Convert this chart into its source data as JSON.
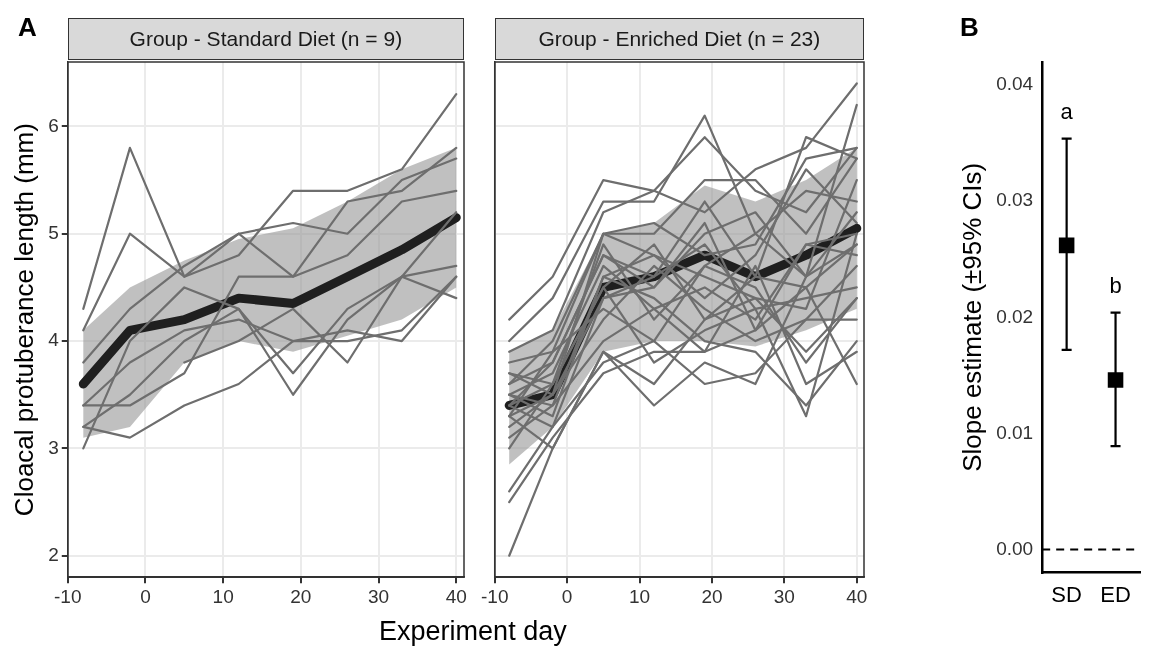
{
  "chart_data": [
    {
      "type": "line",
      "title": "Group - Standard Diet (n = 9)",
      "xlabel": "Experiment day",
      "ylabel": "Cloacal protuberance length (mm)",
      "annotations": [
        "A"
      ],
      "x": [
        -8,
        -2,
        5,
        12,
        19,
        26,
        33,
        40
      ],
      "xlim": [
        -10,
        41
      ],
      "xticks": [
        -10,
        0,
        10,
        20,
        30,
        40
      ],
      "ylim": [
        1.8,
        6.6
      ],
      "yticks": [
        2,
        3,
        4,
        5,
        6
      ],
      "grid": true,
      "series": [
        {
          "color": "#6e6e6e",
          "values": [
            4.3,
            5.8,
            4.6,
            5.0,
            4.6,
            5.3,
            5.4,
            5.8
          ]
        },
        {
          "color": "#6e6e6e",
          "values": [
            4.1,
            5.0,
            4.6,
            4.8,
            5.4,
            5.4,
            5.6,
            6.3
          ]
        },
        {
          "color": "#6e6e6e",
          "values": [
            3.8,
            4.3,
            4.7,
            5.0,
            5.1,
            5.0,
            5.5,
            5.7
          ]
        },
        {
          "color": "#6e6e6e",
          "values": [
            3.4,
            3.4,
            3.7,
            4.6,
            4.6,
            4.8,
            5.3,
            5.4
          ]
        },
        {
          "color": "#6e6e6e",
          "values": [
            3.2,
            3.1,
            3.4,
            3.6,
            4.0,
            4.0,
            4.1,
            4.6
          ]
        },
        {
          "color": "#6e6e6e",
          "values": [
            3.0,
            4.0,
            4.5,
            4.3,
            3.7,
            4.3,
            4.6,
            4.7
          ]
        },
        {
          "color": "#6e6e6e",
          "values": [
            3.2,
            3.5,
            4.0,
            4.3,
            3.5,
            4.2,
            4.6,
            5.2
          ]
        },
        {
          "color": "#6e6e6e",
          "values": [
            null,
            null,
            3.8,
            4.0,
            4.3,
            3.8,
            4.6,
            4.4
          ]
        },
        {
          "color": "#6e6e6e",
          "values": [
            3.4,
            3.8,
            4.1,
            4.2,
            4.0,
            4.1,
            4.0,
            4.6
          ]
        },
        {
          "color": "#1f1f1f",
          "values": [
            3.6,
            4.1,
            4.2,
            4.4,
            4.35,
            4.6,
            4.85,
            5.15
          ],
          "lower": [
            3.1,
            3.2,
            3.8,
            4.0,
            3.9,
            4.05,
            4.2,
            4.5
          ],
          "upper": [
            4.1,
            4.5,
            4.75,
            4.95,
            5.05,
            5.3,
            5.6,
            5.8
          ]
        }
      ]
    },
    {
      "type": "line",
      "title": "Group - Enriched Diet (n = 23)",
      "tick_labels": "x",
      "x": [
        -8,
        -2,
        5,
        12,
        19,
        26,
        33,
        40
      ],
      "xlim": [
        -10,
        41
      ],
      "xticks": [
        -10,
        0,
        10,
        20,
        30,
        40
      ],
      "ylim": [
        1.8,
        6.6
      ],
      "yticks": [
        2,
        3,
        4,
        5,
        6
      ],
      "grid": true,
      "series": [
        {
          "color": "#6e6e6e",
          "values": [
            4.2,
            4.6,
            5.5,
            5.4,
            5.2,
            5.6,
            5.8,
            6.4
          ]
        },
        {
          "color": "#6e6e6e",
          "values": [
            4.0,
            4.4,
            5.3,
            5.3,
            6.1,
            5.0,
            4.6,
            6.2
          ]
        },
        {
          "color": "#6e6e6e",
          "values": [
            3.9,
            4.1,
            5.2,
            5.4,
            5.9,
            5.4,
            5.2,
            5.8
          ]
        },
        {
          "color": "#6e6e6e",
          "values": [
            3.8,
            3.9,
            5.0,
            5.0,
            5.5,
            5.5,
            5.0,
            5.7
          ]
        },
        {
          "color": "#6e6e6e",
          "values": [
            3.7,
            3.5,
            5.0,
            5.1,
            4.8,
            4.9,
            5.7,
            5.8
          ]
        },
        {
          "color": "#6e6e6e",
          "values": [
            3.6,
            3.8,
            4.8,
            4.5,
            5.0,
            5.2,
            4.6,
            5.2
          ]
        },
        {
          "color": "#6e6e6e",
          "values": [
            3.5,
            3.3,
            4.6,
            4.8,
            4.4,
            4.8,
            5.6,
            5.1
          ]
        },
        {
          "color": "#6e6e6e",
          "values": [
            3.5,
            3.7,
            4.7,
            4.3,
            4.5,
            4.2,
            4.9,
            5.0
          ]
        },
        {
          "color": "#6e6e6e",
          "values": [
            3.4,
            3.6,
            4.5,
            4.9,
            4.2,
            4.6,
            4.5,
            4.9
          ]
        },
        {
          "color": "#6e6e6e",
          "values": [
            3.4,
            3.2,
            4.4,
            4.6,
            4.9,
            4.3,
            4.4,
            4.5
          ]
        },
        {
          "color": "#6e6e6e",
          "values": [
            3.3,
            3.9,
            4.3,
            4.0,
            4.7,
            4.5,
            3.8,
            4.4
          ]
        },
        {
          "color": "#6e6e6e",
          "values": [
            3.2,
            3.5,
            4.2,
            4.7,
            4.3,
            4.0,
            4.2,
            4.2
          ]
        },
        {
          "color": "#6e6e6e",
          "values": [
            3.1,
            3.4,
            4.0,
            4.3,
            3.9,
            4.7,
            3.6,
            3.9
          ]
        },
        {
          "color": "#6e6e6e",
          "values": [
            3.0,
            3.6,
            4.5,
            3.8,
            4.1,
            4.3,
            3.3,
            5.0
          ]
        },
        {
          "color": "#6e6e6e",
          "values": [
            2.6,
            3.2,
            3.8,
            4.0,
            3.6,
            3.7,
            4.2,
            4.7
          ]
        },
        {
          "color": "#6e6e6e",
          "values": [
            2.5,
            3.1,
            3.7,
            3.9,
            3.9,
            4.1,
            4.5,
            3.6
          ]
        },
        {
          "color": "#6e6e6e",
          "values": [
            2.0,
            3.0,
            3.9,
            3.6,
            4.2,
            4.4,
            3.9,
            4.4
          ]
        },
        {
          "color": "#6e6e6e",
          "values": [
            3.3,
            3.0,
            3.9,
            3.4,
            3.8,
            3.6,
            4.6,
            4.9
          ]
        },
        {
          "color": "#6e6e6e",
          "values": [
            3.4,
            3.8,
            4.8,
            4.6,
            5.3,
            4.6,
            5.9,
            5.7
          ]
        },
        {
          "color": "#6e6e6e",
          "values": [
            3.6,
            4.0,
            5.0,
            4.8,
            4.6,
            4.4,
            4.3,
            5.5
          ]
        },
        {
          "color": "#6e6e6e",
          "values": [
            3.7,
            3.6,
            4.9,
            4.2,
            4.7,
            5.0,
            5.4,
            5.3
          ]
        },
        {
          "color": "#6e6e6e",
          "values": [
            3.5,
            3.4,
            4.6,
            4.4,
            4.0,
            3.9,
            3.4,
            4.0
          ]
        },
        {
          "color": "#6e6e6e",
          "values": [
            3.3,
            3.5,
            4.4,
            4.5,
            5.1,
            4.1,
            4.9,
            4.8
          ]
        },
        {
          "color": "#1f1f1f",
          "values": [
            3.4,
            3.5,
            4.5,
            4.6,
            4.8,
            4.6,
            4.8,
            5.05
          ],
          "lower": [
            2.85,
            3.2,
            3.9,
            4.0,
            4.0,
            3.95,
            4.1,
            4.3
          ],
          "upper": [
            3.9,
            4.1,
            5.0,
            5.1,
            5.45,
            5.3,
            5.5,
            5.8
          ]
        }
      ]
    },
    {
      "type": "scatter",
      "ylabel": "Slope estimate (±95% CIs)",
      "annotations": [
        "B",
        "a",
        "b"
      ],
      "categories": [
        "SD",
        "ED"
      ],
      "values": [
        0.0262,
        0.0146
      ],
      "errors": [
        [
          0.0172,
          0.0354
        ],
        [
          0.0089,
          0.0204
        ]
      ],
      "color": "#000000",
      "marker": "square",
      "ylim": [
        -0.002,
        0.042
      ],
      "yticks": [
        {
          "value": 0,
          "label": "0.00"
        },
        {
          "value": 0.01,
          "label": "0.01"
        },
        {
          "value": 0.02,
          "label": "0.02"
        },
        {
          "value": 0.03,
          "label": "0.03"
        },
        {
          "value": 0.04,
          "label": "0.04"
        }
      ],
      "grid": false,
      "ref_lines": [
        {
          "axis": "y",
          "value": 0,
          "line_style": "dashed"
        }
      ]
    }
  ]
}
